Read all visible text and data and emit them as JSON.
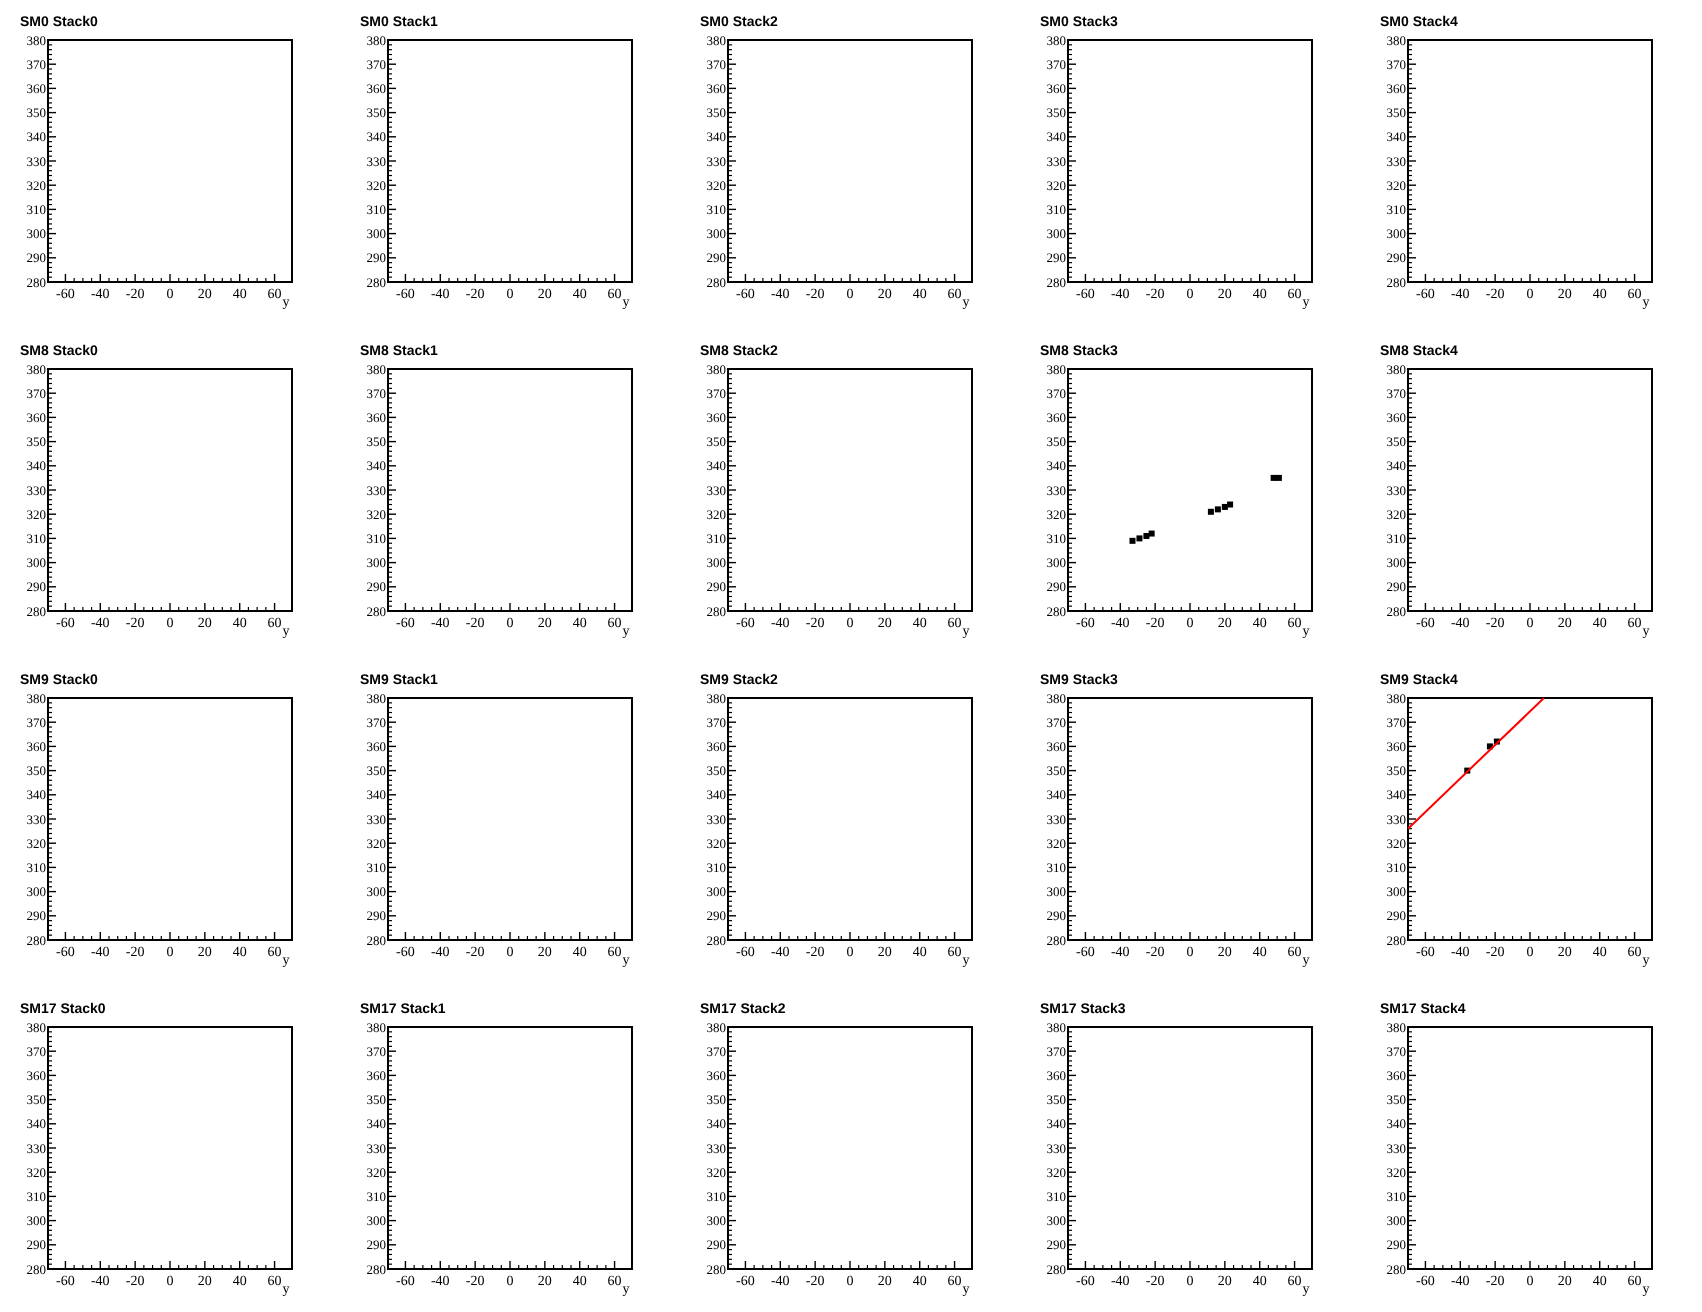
{
  "chart_data": [
    {
      "type": "scatter",
      "title": "SM0 Stack0",
      "xlabel": "y",
      "xlim": [
        -70,
        70
      ],
      "xticks": [
        -60,
        -40,
        -20,
        0,
        20,
        40,
        60
      ],
      "ylim": [
        280,
        380
      ],
      "yticks": [
        280,
        290,
        300,
        310,
        320,
        330,
        340,
        350,
        360,
        370,
        380
      ]
    },
    {
      "type": "scatter",
      "title": "SM0 Stack1",
      "xlabel": "y",
      "xlim": [
        -70,
        70
      ],
      "xticks": [
        -60,
        -40,
        -20,
        0,
        20,
        40,
        60
      ],
      "ylim": [
        280,
        380
      ],
      "yticks": [
        280,
        290,
        300,
        310,
        320,
        330,
        340,
        350,
        360,
        370,
        380
      ]
    },
    {
      "type": "scatter",
      "title": "SM0 Stack2",
      "xlabel": "y",
      "xlim": [
        -70,
        70
      ],
      "xticks": [
        -60,
        -40,
        -20,
        0,
        20,
        40,
        60
      ],
      "ylim": [
        280,
        380
      ],
      "yticks": [
        280,
        290,
        300,
        310,
        320,
        330,
        340,
        350,
        360,
        370,
        380
      ]
    },
    {
      "type": "scatter",
      "title": "SM0 Stack3",
      "xlabel": "y",
      "xlim": [
        -70,
        70
      ],
      "xticks": [
        -60,
        -40,
        -20,
        0,
        20,
        40,
        60
      ],
      "ylim": [
        280,
        380
      ],
      "yticks": [
        280,
        290,
        300,
        310,
        320,
        330,
        340,
        350,
        360,
        370,
        380
      ]
    },
    {
      "type": "scatter",
      "title": "SM0 Stack4",
      "xlabel": "y",
      "xlim": [
        -70,
        70
      ],
      "xticks": [
        -60,
        -40,
        -20,
        0,
        20,
        40,
        60
      ],
      "ylim": [
        280,
        380
      ],
      "yticks": [
        280,
        290,
        300,
        310,
        320,
        330,
        340,
        350,
        360,
        370,
        380
      ]
    },
    {
      "type": "scatter",
      "title": "SM8 Stack0",
      "xlabel": "y",
      "xlim": [
        -70,
        70
      ],
      "xticks": [
        -60,
        -40,
        -20,
        0,
        20,
        40,
        60
      ],
      "ylim": [
        280,
        380
      ],
      "yticks": [
        280,
        290,
        300,
        310,
        320,
        330,
        340,
        350,
        360,
        370,
        380
      ]
    },
    {
      "type": "scatter",
      "title": "SM8 Stack1",
      "xlabel": "y",
      "xlim": [
        -70,
        70
      ],
      "xticks": [
        -60,
        -40,
        -20,
        0,
        20,
        40,
        60
      ],
      "ylim": [
        280,
        380
      ],
      "yticks": [
        280,
        290,
        300,
        310,
        320,
        330,
        340,
        350,
        360,
        370,
        380
      ]
    },
    {
      "type": "scatter",
      "title": "SM8 Stack2",
      "xlabel": "y",
      "xlim": [
        -70,
        70
      ],
      "xticks": [
        -60,
        -40,
        -20,
        0,
        20,
        40,
        60
      ],
      "ylim": [
        280,
        380
      ],
      "yticks": [
        280,
        290,
        300,
        310,
        320,
        330,
        340,
        350,
        360,
        370,
        380
      ]
    },
    {
      "type": "scatter",
      "title": "SM8 Stack3",
      "xlabel": "y",
      "xlim": [
        -70,
        70
      ],
      "xticks": [
        -60,
        -40,
        -20,
        0,
        20,
        40,
        60
      ],
      "ylim": [
        280,
        380
      ],
      "yticks": [
        280,
        290,
        300,
        310,
        320,
        330,
        340,
        350,
        360,
        370,
        380
      ],
      "series": [
        {
          "color": "#000000",
          "marker": "square",
          "x": [
            -33,
            -29,
            -25,
            -22,
            12,
            16,
            20,
            23,
            48,
            51
          ],
          "values": [
            309,
            310,
            311,
            312,
            321,
            322,
            323,
            324,
            335,
            335
          ]
        }
      ]
    },
    {
      "type": "scatter",
      "title": "SM8 Stack4",
      "xlabel": "y",
      "xlim": [
        -70,
        70
      ],
      "xticks": [
        -60,
        -40,
        -20,
        0,
        20,
        40,
        60
      ],
      "ylim": [
        280,
        380
      ],
      "yticks": [
        280,
        290,
        300,
        310,
        320,
        330,
        340,
        350,
        360,
        370,
        380
      ]
    },
    {
      "type": "scatter",
      "title": "SM9 Stack0",
      "xlabel": "y",
      "xlim": [
        -70,
        70
      ],
      "xticks": [
        -60,
        -40,
        -20,
        0,
        20,
        40,
        60
      ],
      "ylim": [
        280,
        380
      ],
      "yticks": [
        280,
        290,
        300,
        310,
        320,
        330,
        340,
        350,
        360,
        370,
        380
      ]
    },
    {
      "type": "scatter",
      "title": "SM9 Stack1",
      "xlabel": "y",
      "xlim": [
        -70,
        70
      ],
      "xticks": [
        -60,
        -40,
        -20,
        0,
        20,
        40,
        60
      ],
      "ylim": [
        280,
        380
      ],
      "yticks": [
        280,
        290,
        300,
        310,
        320,
        330,
        340,
        350,
        360,
        370,
        380
      ]
    },
    {
      "type": "scatter",
      "title": "SM9 Stack2",
      "xlabel": "y",
      "xlim": [
        -70,
        70
      ],
      "xticks": [
        -60,
        -40,
        -20,
        0,
        20,
        40,
        60
      ],
      "ylim": [
        280,
        380
      ],
      "yticks": [
        280,
        290,
        300,
        310,
        320,
        330,
        340,
        350,
        360,
        370,
        380
      ]
    },
    {
      "type": "scatter",
      "title": "SM9 Stack3",
      "xlabel": "y",
      "xlim": [
        -70,
        70
      ],
      "xticks": [
        -60,
        -40,
        -20,
        0,
        20,
        40,
        60
      ],
      "ylim": [
        280,
        380
      ],
      "yticks": [
        280,
        290,
        300,
        310,
        320,
        330,
        340,
        350,
        360,
        370,
        380
      ]
    },
    {
      "type": "scatter",
      "title": "SM9 Stack4",
      "xlabel": "y",
      "xlim": [
        -70,
        70
      ],
      "xticks": [
        -60,
        -40,
        -20,
        0,
        20,
        40,
        60
      ],
      "ylim": [
        280,
        380
      ],
      "yticks": [
        280,
        290,
        300,
        310,
        320,
        330,
        340,
        350,
        360,
        370,
        380
      ],
      "series": [
        {
          "color": "#000000",
          "marker": "square",
          "x": [
            -36,
            -23,
            -19
          ],
          "values": [
            350,
            360,
            362
          ]
        },
        {
          "type": "line",
          "color": "#ff0000",
          "x": [
            -70,
            8
          ],
          "values": [
            326,
            380
          ]
        }
      ]
    },
    {
      "type": "scatter",
      "title": "SM17 Stack0",
      "xlabel": "y",
      "xlim": [
        -70,
        70
      ],
      "xticks": [
        -60,
        -40,
        -20,
        0,
        20,
        40,
        60
      ],
      "ylim": [
        280,
        380
      ],
      "yticks": [
        280,
        290,
        300,
        310,
        320,
        330,
        340,
        350,
        360,
        370,
        380
      ]
    },
    {
      "type": "scatter",
      "title": "SM17 Stack1",
      "xlabel": "y",
      "xlim": [
        -70,
        70
      ],
      "xticks": [
        -60,
        -40,
        -20,
        0,
        20,
        40,
        60
      ],
      "ylim": [
        280,
        380
      ],
      "yticks": [
        280,
        290,
        300,
        310,
        320,
        330,
        340,
        350,
        360,
        370,
        380
      ]
    },
    {
      "type": "scatter",
      "title": "SM17 Stack2",
      "xlabel": "y",
      "xlim": [
        -70,
        70
      ],
      "xticks": [
        -60,
        -40,
        -20,
        0,
        20,
        40,
        60
      ],
      "ylim": [
        280,
        380
      ],
      "yticks": [
        280,
        290,
        300,
        310,
        320,
        330,
        340,
        350,
        360,
        370,
        380
      ]
    },
    {
      "type": "scatter",
      "title": "SM17 Stack3",
      "xlabel": "y",
      "xlim": [
        -70,
        70
      ],
      "xticks": [
        -60,
        -40,
        -20,
        0,
        20,
        40,
        60
      ],
      "ylim": [
        280,
        380
      ],
      "yticks": [
        280,
        290,
        300,
        310,
        320,
        330,
        340,
        350,
        360,
        370,
        380
      ]
    },
    {
      "type": "scatter",
      "title": "SM17 Stack4",
      "xlabel": "y",
      "xlim": [
        -70,
        70
      ],
      "xticks": [
        -60,
        -40,
        -20,
        0,
        20,
        40,
        60
      ],
      "ylim": [
        280,
        380
      ],
      "yticks": [
        280,
        290,
        300,
        310,
        320,
        330,
        340,
        350,
        360,
        370,
        380
      ]
    }
  ]
}
